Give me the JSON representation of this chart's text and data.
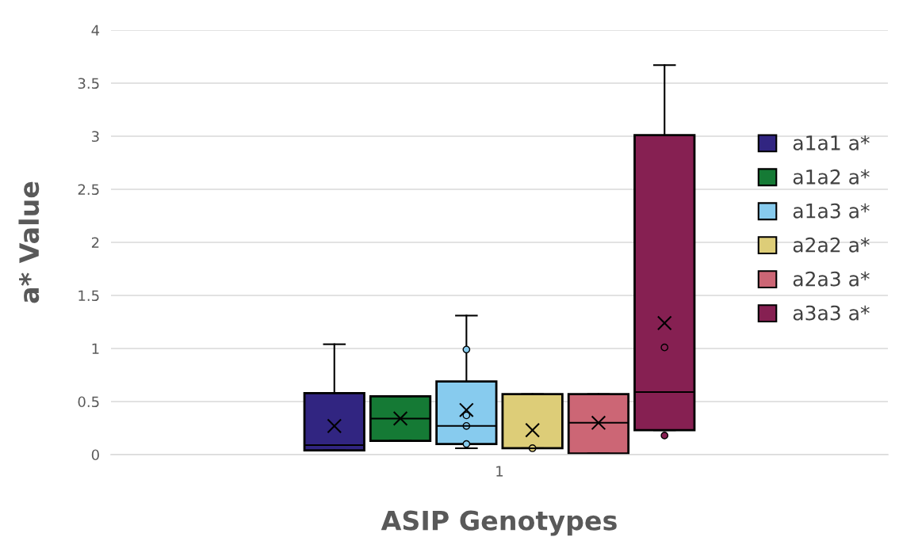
{
  "chart_data": {
    "type": "box",
    "xlabel": "ASIP Genotypes",
    "ylabel": "a* Value",
    "categories": [
      "1"
    ],
    "ylim": [
      0,
      4
    ],
    "yticks": [
      0,
      0.5,
      1,
      1.5,
      2,
      2.5,
      3,
      3.5,
      4
    ],
    "grid": "y",
    "legend": "right",
    "series": [
      {
        "name": "a1a1 a*",
        "color": "#312581",
        "boxes": [
          {
            "low": 0.04,
            "q1": 0.04,
            "median": 0.09,
            "q3": 0.58,
            "high": 1.04,
            "mean": 0.27
          }
        ]
      },
      {
        "name": "a1a2 a*",
        "color": "#157a35",
        "boxes": [
          {
            "low": 0.13,
            "q1": 0.13,
            "median": 0.34,
            "q3": 0.55,
            "high": 0.55,
            "mean": 0.34
          }
        ]
      },
      {
        "name": "a1a3 a*",
        "color": "#87cbee",
        "boxes": [
          {
            "low": 0.06,
            "q1": 0.1,
            "median": 0.27,
            "q3": 0.69,
            "high": 1.31,
            "mean": 0.42,
            "outliers": [
              0.99,
              0.37,
              0.27,
              0.1
            ]
          }
        ]
      },
      {
        "name": "a2a2 a*",
        "color": "#ddcd78",
        "boxes": [
          {
            "low": 0.06,
            "q1": 0.06,
            "median": 0.06,
            "q3": 0.57,
            "high": 0.57,
            "mean": 0.23,
            "outliers": [
              0.06
            ]
          }
        ]
      },
      {
        "name": "a2a3 a*",
        "color": "#cc6675",
        "boxes": [
          {
            "low": 0.01,
            "q1": 0.01,
            "median": 0.3,
            "q3": 0.57,
            "high": 0.57,
            "mean": 0.3
          }
        ]
      },
      {
        "name": "a3a3 a*",
        "color": "#862052",
        "boxes": [
          {
            "low": 0.23,
            "q1": 0.23,
            "median": 0.59,
            "q3": 3.01,
            "high": 3.67,
            "mean": 1.24,
            "outliers": [
              1.01,
              0.18
            ]
          }
        ]
      }
    ]
  }
}
